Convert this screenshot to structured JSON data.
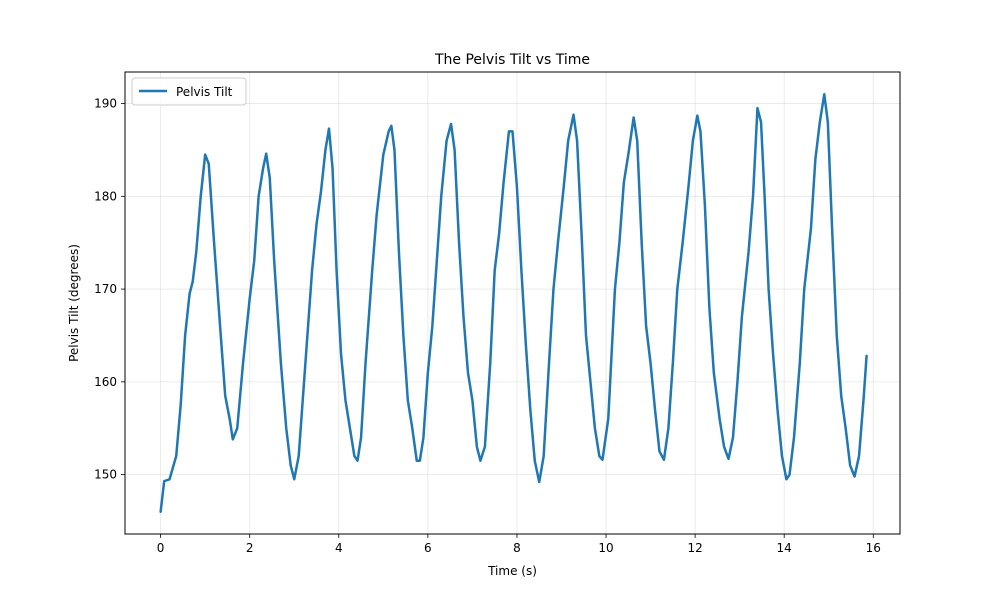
{
  "chart_data": {
    "type": "line",
    "title": "The Pelvis Tilt vs Time",
    "xlabel": "Time (s)",
    "ylabel": "Pelvis Tilt (degrees)",
    "xlim": [
      -0.8,
      16.6
    ],
    "ylim": [
      143.6,
      193.4
    ],
    "xticks": [
      0,
      2,
      4,
      6,
      8,
      10,
      12,
      14,
      16
    ],
    "yticks": [
      150,
      160,
      170,
      180,
      190
    ],
    "grid": true,
    "legend_position": "top-left",
    "series": [
      {
        "name": "Pelvis Tilt",
        "color": "#1f77b4",
        "points": [
          [
            0.0,
            146.0
          ],
          [
            0.08,
            149.3
          ],
          [
            0.2,
            149.5
          ],
          [
            0.35,
            152.0
          ],
          [
            0.45,
            157.5
          ],
          [
            0.55,
            165.0
          ],
          [
            0.65,
            169.5
          ],
          [
            0.72,
            170.8
          ],
          [
            0.8,
            174.0
          ],
          [
            0.9,
            180.0
          ],
          [
            1.0,
            184.5
          ],
          [
            1.08,
            183.5
          ],
          [
            1.2,
            175.0
          ],
          [
            1.35,
            165.0
          ],
          [
            1.45,
            158.5
          ],
          [
            1.55,
            156.0
          ],
          [
            1.62,
            153.8
          ],
          [
            1.72,
            155.0
          ],
          [
            1.85,
            162.0
          ],
          [
            2.0,
            169.0
          ],
          [
            2.1,
            173.0
          ],
          [
            2.2,
            180.0
          ],
          [
            2.3,
            183.0
          ],
          [
            2.37,
            184.6
          ],
          [
            2.45,
            182.0
          ],
          [
            2.55,
            173.0
          ],
          [
            2.7,
            162.0
          ],
          [
            2.82,
            155.0
          ],
          [
            2.92,
            151.0
          ],
          [
            3.0,
            149.5
          ],
          [
            3.1,
            152.0
          ],
          [
            3.25,
            162.0
          ],
          [
            3.4,
            172.0
          ],
          [
            3.5,
            177.0
          ],
          [
            3.6,
            180.5
          ],
          [
            3.7,
            185.0
          ],
          [
            3.78,
            187.3
          ],
          [
            3.86,
            183.0
          ],
          [
            3.95,
            172.0
          ],
          [
            4.05,
            163.0
          ],
          [
            4.15,
            158.0
          ],
          [
            4.25,
            155.0
          ],
          [
            4.35,
            152.0
          ],
          [
            4.42,
            151.5
          ],
          [
            4.5,
            154.0
          ],
          [
            4.6,
            162.0
          ],
          [
            4.75,
            172.0
          ],
          [
            4.85,
            178.0
          ],
          [
            5.0,
            184.5
          ],
          [
            5.12,
            187.0
          ],
          [
            5.18,
            187.6
          ],
          [
            5.25,
            185.0
          ],
          [
            5.35,
            174.0
          ],
          [
            5.45,
            165.0
          ],
          [
            5.55,
            158.0
          ],
          [
            5.65,
            155.0
          ],
          [
            5.75,
            151.5
          ],
          [
            5.82,
            151.5
          ],
          [
            5.9,
            154.0
          ],
          [
            6.0,
            161.0
          ],
          [
            6.1,
            166.0
          ],
          [
            6.2,
            173.0
          ],
          [
            6.3,
            180.0
          ],
          [
            6.42,
            186.0
          ],
          [
            6.52,
            187.8
          ],
          [
            6.6,
            185.0
          ],
          [
            6.7,
            175.0
          ],
          [
            6.8,
            167.0
          ],
          [
            6.9,
            161.0
          ],
          [
            7.0,
            158.0
          ],
          [
            7.1,
            153.0
          ],
          [
            7.18,
            151.5
          ],
          [
            7.28,
            153.0
          ],
          [
            7.4,
            162.0
          ],
          [
            7.5,
            172.0
          ],
          [
            7.6,
            176.0
          ],
          [
            7.7,
            181.5
          ],
          [
            7.82,
            187.0
          ],
          [
            7.9,
            187.0
          ],
          [
            8.0,
            181.0
          ],
          [
            8.1,
            172.0
          ],
          [
            8.2,
            164.0
          ],
          [
            8.3,
            157.0
          ],
          [
            8.4,
            151.5
          ],
          [
            8.5,
            149.2
          ],
          [
            8.6,
            152.0
          ],
          [
            8.72,
            162.0
          ],
          [
            8.82,
            170.0
          ],
          [
            8.92,
            175.0
          ],
          [
            9.05,
            181.0
          ],
          [
            9.15,
            186.0
          ],
          [
            9.27,
            188.8
          ],
          [
            9.35,
            186.0
          ],
          [
            9.45,
            176.0
          ],
          [
            9.55,
            165.0
          ],
          [
            9.65,
            160.0
          ],
          [
            9.75,
            155.0
          ],
          [
            9.85,
            152.0
          ],
          [
            9.92,
            151.6
          ],
          [
            10.05,
            156.0
          ],
          [
            10.2,
            170.0
          ],
          [
            10.3,
            175.0
          ],
          [
            10.4,
            181.5
          ],
          [
            10.5,
            184.5
          ],
          [
            10.62,
            188.5
          ],
          [
            10.7,
            186.0
          ],
          [
            10.8,
            175.0
          ],
          [
            10.9,
            166.0
          ],
          [
            11.0,
            162.0
          ],
          [
            11.1,
            157.0
          ],
          [
            11.2,
            152.5
          ],
          [
            11.3,
            151.6
          ],
          [
            11.4,
            155.0
          ],
          [
            11.5,
            162.0
          ],
          [
            11.6,
            170.0
          ],
          [
            11.72,
            175.0
          ],
          [
            11.85,
            181.0
          ],
          [
            11.95,
            186.0
          ],
          [
            12.05,
            188.7
          ],
          [
            12.12,
            187.0
          ],
          [
            12.22,
            179.0
          ],
          [
            12.32,
            168.0
          ],
          [
            12.42,
            161.0
          ],
          [
            12.55,
            156.0
          ],
          [
            12.65,
            153.0
          ],
          [
            12.75,
            151.7
          ],
          [
            12.85,
            154.0
          ],
          [
            12.95,
            160.0
          ],
          [
            13.05,
            167.0
          ],
          [
            13.2,
            174.0
          ],
          [
            13.3,
            180.0
          ],
          [
            13.4,
            189.5
          ],
          [
            13.48,
            188.0
          ],
          [
            13.56,
            180.0
          ],
          [
            13.65,
            170.0
          ],
          [
            13.75,
            163.0
          ],
          [
            13.85,
            157.0
          ],
          [
            13.95,
            152.0
          ],
          [
            14.05,
            149.5
          ],
          [
            14.12,
            150.0
          ],
          [
            14.22,
            154.0
          ],
          [
            14.35,
            162.0
          ],
          [
            14.45,
            170.0
          ],
          [
            14.6,
            176.5
          ],
          [
            14.7,
            184.0
          ],
          [
            14.8,
            188.0
          ],
          [
            14.9,
            191.0
          ],
          [
            14.98,
            188.0
          ],
          [
            15.08,
            176.0
          ],
          [
            15.18,
            165.0
          ],
          [
            15.28,
            158.5
          ],
          [
            15.38,
            155.0
          ],
          [
            15.48,
            151.0
          ],
          [
            15.58,
            149.8
          ],
          [
            15.68,
            152.0
          ],
          [
            15.78,
            158.0
          ],
          [
            15.85,
            162.8
          ]
        ]
      }
    ]
  }
}
